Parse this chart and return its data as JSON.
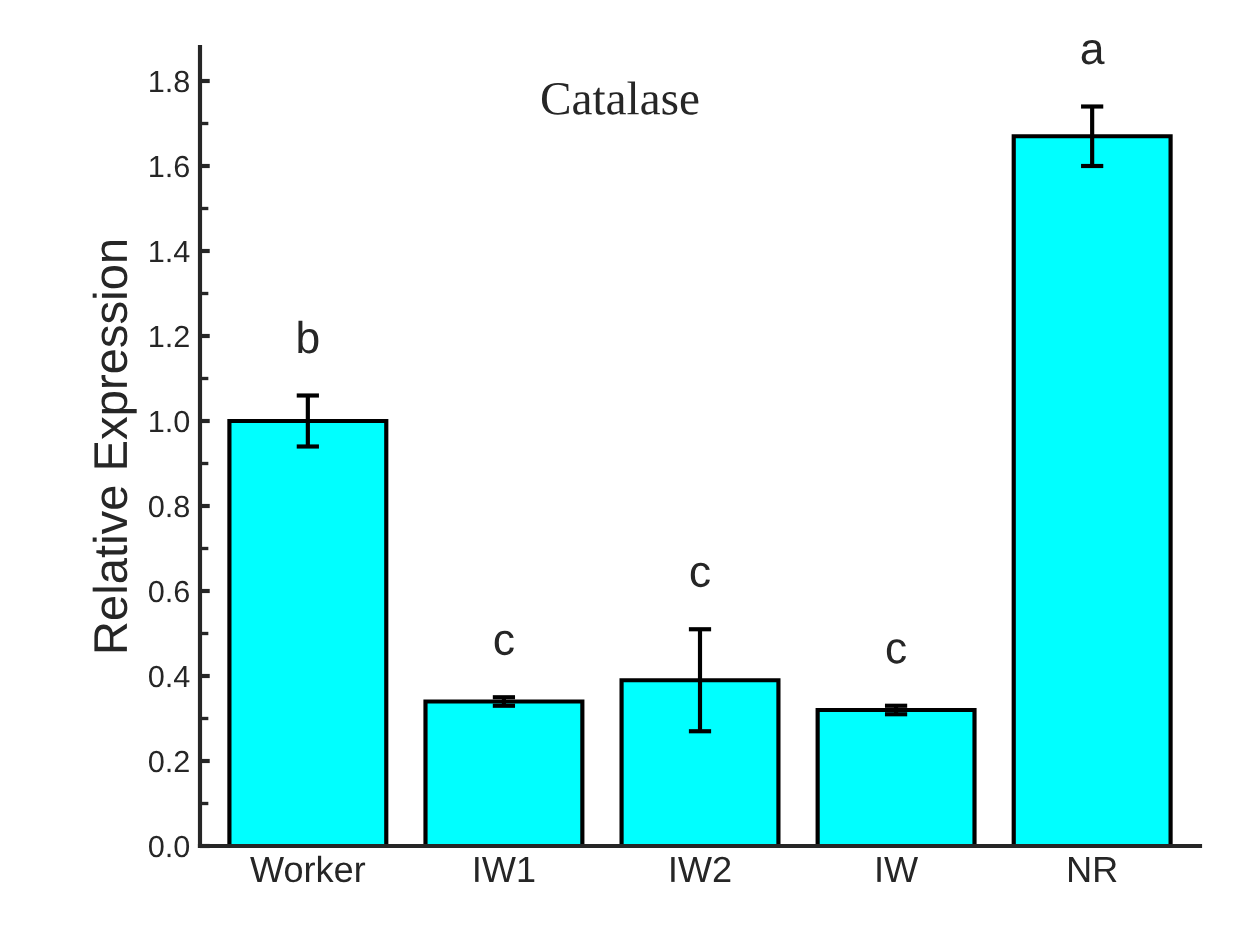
{
  "chart_data": {
    "type": "bar",
    "title": "Catalase",
    "ylabel": "Relative Expression",
    "categories": [
      "Worker",
      "IW1",
      "IW2",
      "IW",
      "NR"
    ],
    "values": [
      1.0,
      0.34,
      0.39,
      0.32,
      1.67
    ],
    "errors": [
      0.06,
      0.01,
      0.12,
      0.01,
      0.07
    ],
    "color": "#00ffff",
    "ylim": [
      0,
      1.88
    ],
    "yticks": [
      {
        "value": 0,
        "label": "0.0"
      },
      {
        "value": 0.2,
        "label": "0.2"
      },
      {
        "value": 0.4,
        "label": "0.4"
      },
      {
        "value": 0.6,
        "label": "0.6"
      },
      {
        "value": 0.8,
        "label": "0.8"
      },
      {
        "value": 1.0,
        "label": "1.0"
      },
      {
        "value": 1.2,
        "label": "1.2"
      },
      {
        "value": 1.4,
        "label": "1.4"
      },
      {
        "value": 1.6,
        "label": "1.6"
      },
      {
        "value": 1.8,
        "label": "1.8"
      }
    ],
    "annotations": [
      "b",
      "c",
      "c",
      "c",
      "a"
    ],
    "grid": false,
    "legend": false
  }
}
